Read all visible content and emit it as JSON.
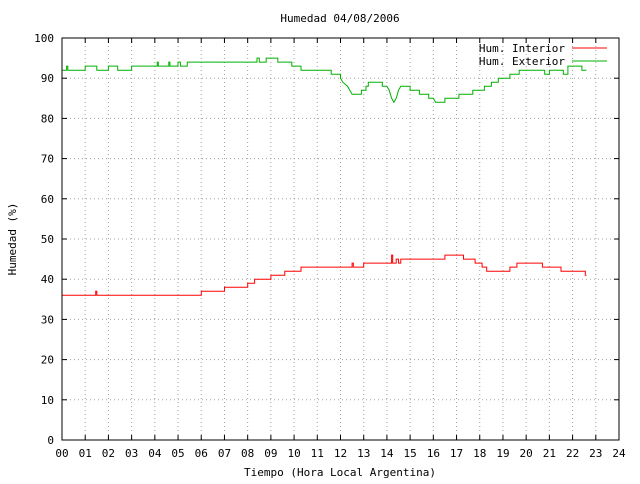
{
  "chart_data": {
    "type": "line",
    "title": "Humedad 04/08/2006",
    "xlabel": "Tiempo (Hora Local Argentina)",
    "ylabel": "Humedad (%)",
    "xlim": [
      0,
      24
    ],
    "ylim": [
      0,
      100
    ],
    "x_ticks": [
      "00",
      "01",
      "02",
      "03",
      "04",
      "05",
      "06",
      "07",
      "08",
      "09",
      "10",
      "11",
      "12",
      "13",
      "14",
      "15",
      "16",
      "17",
      "18",
      "19",
      "20",
      "21",
      "22",
      "23",
      "24"
    ],
    "y_ticks": [
      "0",
      "10",
      "20",
      "30",
      "40",
      "50",
      "60",
      "70",
      "80",
      "90",
      "100"
    ],
    "grid": true,
    "legend_position": "top-right",
    "series": [
      {
        "name": "Hum. Interior",
        "color": "#ff0000",
        "style": "step",
        "points": [
          [
            0,
            36
          ],
          [
            1.45,
            36
          ],
          [
            1.45,
            37
          ],
          [
            1.5,
            37
          ],
          [
            1.5,
            36
          ],
          [
            6.0,
            36
          ],
          [
            6.0,
            37
          ],
          [
            7.0,
            37
          ],
          [
            7.0,
            38
          ],
          [
            8.0,
            38
          ],
          [
            8.0,
            39
          ],
          [
            8.3,
            39
          ],
          [
            8.3,
            40
          ],
          [
            9.0,
            40
          ],
          [
            9.0,
            41
          ],
          [
            9.6,
            41
          ],
          [
            9.6,
            42
          ],
          [
            10.3,
            42
          ],
          [
            10.3,
            43
          ],
          [
            12.5,
            43
          ],
          [
            12.5,
            44
          ],
          [
            12.55,
            44
          ],
          [
            12.55,
            43
          ],
          [
            13.0,
            43
          ],
          [
            13.0,
            44
          ],
          [
            14.2,
            44
          ],
          [
            14.2,
            46
          ],
          [
            14.25,
            46
          ],
          [
            14.25,
            44
          ],
          [
            14.4,
            44
          ],
          [
            14.4,
            45
          ],
          [
            14.5,
            45
          ],
          [
            14.5,
            44
          ],
          [
            14.6,
            44
          ],
          [
            14.6,
            45
          ],
          [
            16.5,
            45
          ],
          [
            16.5,
            46
          ],
          [
            17.3,
            46
          ],
          [
            17.3,
            45
          ],
          [
            17.8,
            45
          ],
          [
            17.8,
            44
          ],
          [
            18.1,
            44
          ],
          [
            18.1,
            43
          ],
          [
            18.3,
            43
          ],
          [
            18.3,
            42
          ],
          [
            19.3,
            42
          ],
          [
            19.3,
            43
          ],
          [
            19.6,
            43
          ],
          [
            19.6,
            44
          ],
          [
            20.7,
            44
          ],
          [
            20.7,
            43
          ],
          [
            21.5,
            43
          ],
          [
            21.5,
            42
          ],
          [
            22.55,
            42
          ],
          [
            22.55,
            41
          ],
          [
            22.6,
            41
          ]
        ]
      },
      {
        "name": "Hum. Exterior",
        "color": "#00b000",
        "style": "step",
        "points": [
          [
            0,
            92
          ],
          [
            0.2,
            92
          ],
          [
            0.2,
            93
          ],
          [
            0.25,
            93
          ],
          [
            0.25,
            92
          ],
          [
            1.0,
            92
          ],
          [
            1.0,
            93
          ],
          [
            1.5,
            93
          ],
          [
            1.5,
            92
          ],
          [
            2.0,
            92
          ],
          [
            2.0,
            93
          ],
          [
            2.4,
            93
          ],
          [
            2.4,
            92
          ],
          [
            3.0,
            92
          ],
          [
            3.0,
            93
          ],
          [
            4.1,
            93
          ],
          [
            4.1,
            94
          ],
          [
            4.15,
            94
          ],
          [
            4.15,
            93
          ],
          [
            4.6,
            93
          ],
          [
            4.6,
            94
          ],
          [
            4.65,
            94
          ],
          [
            4.65,
            93
          ],
          [
            5.0,
            93
          ],
          [
            5.0,
            94
          ],
          [
            5.1,
            94
          ],
          [
            5.1,
            93
          ],
          [
            5.4,
            93
          ],
          [
            5.4,
            94
          ],
          [
            8.4,
            94
          ],
          [
            8.4,
            95
          ],
          [
            8.5,
            95
          ],
          [
            8.5,
            94
          ],
          [
            8.8,
            94
          ],
          [
            8.8,
            95
          ],
          [
            9.3,
            95
          ],
          [
            9.3,
            94
          ],
          [
            9.9,
            94
          ],
          [
            9.9,
            93
          ],
          [
            10.3,
            93
          ],
          [
            10.3,
            92
          ],
          [
            11.6,
            92
          ],
          [
            11.6,
            91
          ],
          [
            12.0,
            91
          ],
          [
            12.0,
            90
          ],
          [
            12.1,
            89
          ],
          [
            12.3,
            88
          ],
          [
            12.4,
            87
          ],
          [
            12.5,
            86
          ],
          [
            12.9,
            86
          ],
          [
            12.9,
            87
          ],
          [
            13.1,
            87
          ],
          [
            13.1,
            88
          ],
          [
            13.2,
            88
          ],
          [
            13.2,
            89
          ],
          [
            13.8,
            89
          ],
          [
            13.8,
            88
          ],
          [
            14.0,
            88
          ],
          [
            14.1,
            87
          ],
          [
            14.2,
            85
          ],
          [
            14.3,
            84
          ],
          [
            14.4,
            85
          ],
          [
            14.5,
            87
          ],
          [
            14.6,
            88
          ],
          [
            15.0,
            88
          ],
          [
            15.0,
            87
          ],
          [
            15.4,
            87
          ],
          [
            15.4,
            86
          ],
          [
            15.8,
            86
          ],
          [
            15.8,
            85
          ],
          [
            16.0,
            85
          ],
          [
            16.1,
            84
          ],
          [
            16.5,
            84
          ],
          [
            16.5,
            85
          ],
          [
            17.1,
            85
          ],
          [
            17.1,
            86
          ],
          [
            17.7,
            86
          ],
          [
            17.7,
            87
          ],
          [
            18.2,
            87
          ],
          [
            18.2,
            88
          ],
          [
            18.5,
            88
          ],
          [
            18.5,
            89
          ],
          [
            18.8,
            89
          ],
          [
            18.8,
            90
          ],
          [
            19.3,
            90
          ],
          [
            19.3,
            91
          ],
          [
            19.7,
            91
          ],
          [
            19.7,
            92
          ],
          [
            20.8,
            92
          ],
          [
            20.8,
            91
          ],
          [
            21.0,
            91
          ],
          [
            21.0,
            92
          ],
          [
            21.6,
            92
          ],
          [
            21.6,
            91
          ],
          [
            21.8,
            91
          ],
          [
            21.8,
            93
          ],
          [
            22.4,
            93
          ],
          [
            22.4,
            92
          ],
          [
            22.6,
            92
          ]
        ]
      }
    ]
  }
}
